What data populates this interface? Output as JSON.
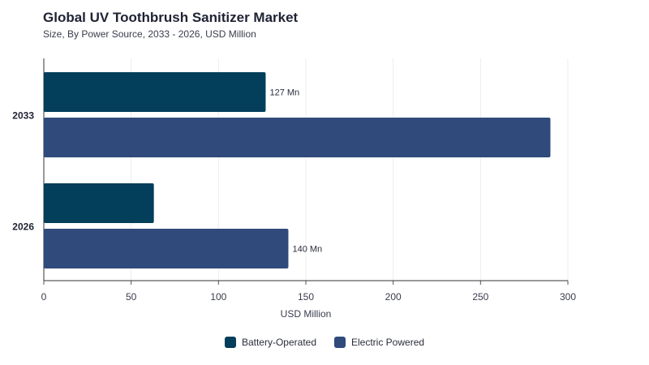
{
  "title": "Global UV Toothbrush Sanitizer Market",
  "subtitle": "Size, By Power Source, 2033 - 2026, USD Million",
  "chart_data": {
    "type": "bar",
    "orientation": "horizontal",
    "categories": [
      "2033",
      "2026"
    ],
    "series": [
      {
        "name": "Battery-Operated",
        "color": "#033e5a",
        "values": [
          127,
          63
        ],
        "labels": [
          "127 Mn",
          ""
        ]
      },
      {
        "name": "Electric Powered",
        "color": "#2f4a7b",
        "values": [
          290,
          140
        ],
        "labels": [
          "",
          "140 Mn"
        ]
      }
    ],
    "xlabel": "USD Million",
    "ylabel": "",
    "xlim": [
      0,
      300
    ],
    "xticks": [
      "0",
      "50",
      "100",
      "150",
      "200",
      "250",
      "300"
    ],
    "grid": true,
    "legend_position": "bottom"
  }
}
